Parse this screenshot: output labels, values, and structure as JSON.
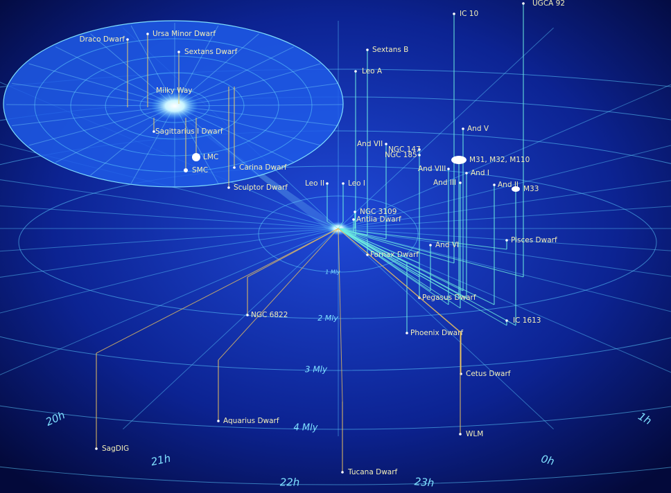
{
  "galaxies": [
    "IC 10",
    "UGCA 92",
    "Sextans B",
    "Leo A",
    "And V",
    "And VII",
    "NGC 147",
    "NGC 185",
    "M31, M32, M110",
    "And VIII",
    "And I",
    "And III",
    "And II",
    "M33",
    "Leo II",
    "Leo I",
    "NGC 3109",
    "Antlia Dwarf",
    "Pisces Dwarf",
    "And VI",
    "Fornax Dwarf",
    "Pegasus Dwarf",
    "IC 1613",
    "NGC 6822",
    "Phoenix Dwarf",
    "Cetus Dwarf",
    "Aquarius Dwarf",
    "WLM",
    "SagDIG",
    "Tucana Dwarf"
  ],
  "inset_galaxies": [
    "Draco Dwarf",
    "Ursa Minor Dwarf",
    "Sextans Dwarf",
    "Milky Way",
    "Sagittarius I Dwarf",
    "LMC",
    "SMC",
    "Carina Dwarf",
    "Sculptor Dwarf"
  ],
  "distance_rings": [
    "1 Mly",
    "2 Mly",
    "3 Mly",
    "4 Mly"
  ],
  "hour_labels": [
    "20h",
    "21h",
    "22h",
    "23h",
    "0h",
    "1h"
  ]
}
